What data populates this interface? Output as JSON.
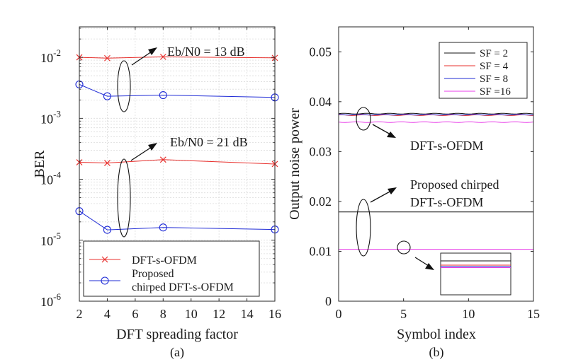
{
  "chart_data": [
    {
      "type": "line",
      "panel_label": "(a)",
      "xlabel": "DFT spreading factor",
      "ylabel": "BER",
      "xlim": [
        2,
        16
      ],
      "ylim_log10": [
        -6,
        -1.5
      ],
      "yscale": "log",
      "xticks": [
        "2",
        "4",
        "6",
        "8",
        "10",
        "12",
        "14",
        "16"
      ],
      "yticks": [
        {
          "base": "10",
          "exp": "-6",
          "value": -6
        },
        {
          "base": "10",
          "exp": "-5",
          "value": -5
        },
        {
          "base": "10",
          "exp": "-4",
          "value": -4
        },
        {
          "base": "10",
          "exp": "-3",
          "value": -3
        },
        {
          "base": "10",
          "exp": "-2",
          "value": -2
        }
      ],
      "x": [
        2,
        4,
        8,
        16
      ],
      "series": [
        {
          "name": "DFT-s-OFDM",
          "snr": "13 dB",
          "values": [
            0.01,
            0.0097,
            0.0102,
            0.0098
          ],
          "color": "#e8302d",
          "marker": "x"
        },
        {
          "name": "Proposed chirped DFT-s-OFDM",
          "snr": "13 dB",
          "values": [
            0.0036,
            0.0023,
            0.0024,
            0.0022
          ],
          "color": "#1f2bd6",
          "marker": "o"
        },
        {
          "name": "DFT-s-OFDM",
          "snr": "21 dB",
          "values": [
            0.00019,
            0.000185,
            0.00021,
            0.000178
          ],
          "color": "#e8302d",
          "marker": "x"
        },
        {
          "name": "Proposed chirped DFT-s-OFDM",
          "snr": "21 dB",
          "values": [
            3e-05,
            1.48e-05,
            1.62e-05,
            1.5e-05
          ],
          "color": "#1f2bd6",
          "marker": "o"
        }
      ],
      "annotations": [
        "Eb/N0 = 13 dB",
        "Eb/N0 = 21 dB"
      ],
      "legend": {
        "location": "bottom-left",
        "entries": [
          "DFT-s-OFDM",
          "Proposed",
          "chirped DFT-s-OFDM"
        ]
      },
      "grid": true
    },
    {
      "type": "line",
      "panel_label": "(b)",
      "xlabel": "Symbol index",
      "ylabel": "Output noise power",
      "xlim": [
        0,
        15
      ],
      "ylim": [
        0,
        0.055
      ],
      "xticks": [
        "0",
        "5",
        "10",
        "15"
      ],
      "yticks": [
        "0",
        "0.01",
        "0.02",
        "0.03",
        "0.04",
        "0.05"
      ],
      "series": [
        {
          "name": "SF = 2",
          "color": "#111111",
          "group": "DFT-s-OFDM",
          "level": 0.0376
        },
        {
          "name": "SF = 4",
          "color": "#e8302d",
          "group": "DFT-s-OFDM",
          "level": 0.0373
        },
        {
          "name": "SF = 8",
          "color": "#1f2bd6",
          "group": "DFT-s-OFDM",
          "level": 0.0374
        },
        {
          "name": "SF =16",
          "color": "#e83de8",
          "group": "DFT-s-OFDM",
          "level": 0.0359
        },
        {
          "name": "SF = 2",
          "color": "#111111",
          "group": "Proposed chirped DFT-s-OFDM",
          "level": 0.0179
        },
        {
          "name": "SF = 16",
          "color": "#e83de8",
          "group": "Proposed chirped DFT-s-OFDM",
          "level": 0.0104
        }
      ],
      "annotations": [
        "DFT-s-OFDM",
        "Proposed chirped",
        "DFT-s-OFDM"
      ],
      "legend": {
        "location": "top-right",
        "entries": [
          "SF = 2",
          "SF = 4",
          "SF = 8",
          "SF =16"
        ]
      },
      "grid": false
    }
  ]
}
